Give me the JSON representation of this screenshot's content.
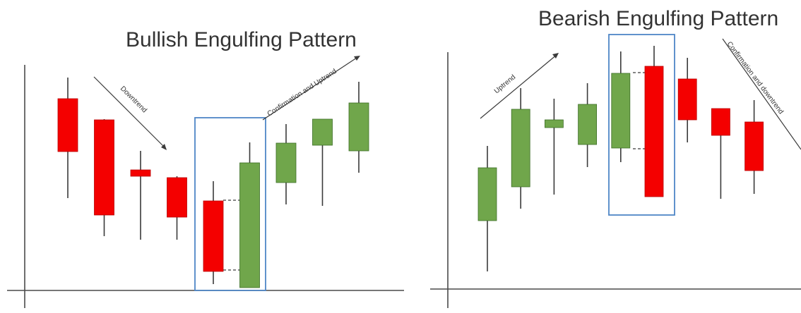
{
  "charts": [
    {
      "chart_data": {
        "type": "candlestick",
        "title": "Bullish Engulfing Pattern",
        "annotations": [
          "Downtrend",
          "Confirmation and Uptrend"
        ],
        "highlight": "engulfing pair (candles 5-6)",
        "candles": [
          {
            "open": 272,
            "close": 197,
            "high": 302,
            "low": 131,
            "color": "red"
          },
          {
            "open": 242,
            "close": 107,
            "high": 243,
            "low": 77,
            "color": "red"
          },
          {
            "open": 171,
            "close": 162,
            "high": 198,
            "low": 72,
            "color": "red"
          },
          {
            "open": 160,
            "close": 104,
            "high": 162,
            "low": 72,
            "color": "red"
          },
          {
            "open": 127,
            "close": 27,
            "high": 155,
            "low": 9,
            "color": "red"
          },
          {
            "open": 4,
            "close": 181,
            "high": 210,
            "low": 4,
            "color": "green"
          },
          {
            "open": 153,
            "close": 209,
            "high": 236,
            "low": 122,
            "color": "green"
          },
          {
            "open": 206,
            "close": 243,
            "high": 243,
            "low": 120,
            "color": "green"
          },
          {
            "open": 198,
            "close": 266,
            "high": 296,
            "low": 167,
            "color": "green"
          }
        ]
      }
    },
    {
      "chart_data": {
        "type": "candlestick",
        "title": "Bearish Engulfing Pattern",
        "annotations": [
          "Uptrend",
          "Confirmation and downtrend"
        ],
        "highlight": "engulfing pair (candles 5-6)",
        "candles": [
          {
            "open": 97,
            "close": 172,
            "high": 203,
            "low": 25,
            "color": "green"
          },
          {
            "open": 145,
            "close": 255,
            "high": 285,
            "low": 114,
            "color": "green"
          },
          {
            "open": 229,
            "close": 240,
            "high": 270,
            "low": 134,
            "color": "green"
          },
          {
            "open": 205,
            "close": 262,
            "high": 292,
            "low": 173,
            "color": "green"
          },
          {
            "open": 200,
            "close": 306,
            "high": 337,
            "low": 180,
            "color": "green"
          },
          {
            "open": 316,
            "close": 131,
            "high": 345,
            "low": 131,
            "color": "red"
          },
          {
            "open": 298,
            "close": 240,
            "high": 328,
            "low": 208,
            "color": "red"
          },
          {
            "open": 256,
            "close": 218,
            "high": 256,
            "low": 128,
            "color": "red"
          },
          {
            "open": 237,
            "close": 168,
            "high": 268,
            "low": 135,
            "color": "red"
          }
        ]
      }
    }
  ],
  "colors": {
    "bull": "#70A64B",
    "bull_edge": "#3D6E27",
    "bear": "#F40000",
    "bear_edge": "#B80000",
    "wick": "#3A3A3A",
    "axis": "#4A4A4A",
    "highlight": "#4F86C6",
    "arrow": "#3A3A3A",
    "text": "#333333"
  }
}
